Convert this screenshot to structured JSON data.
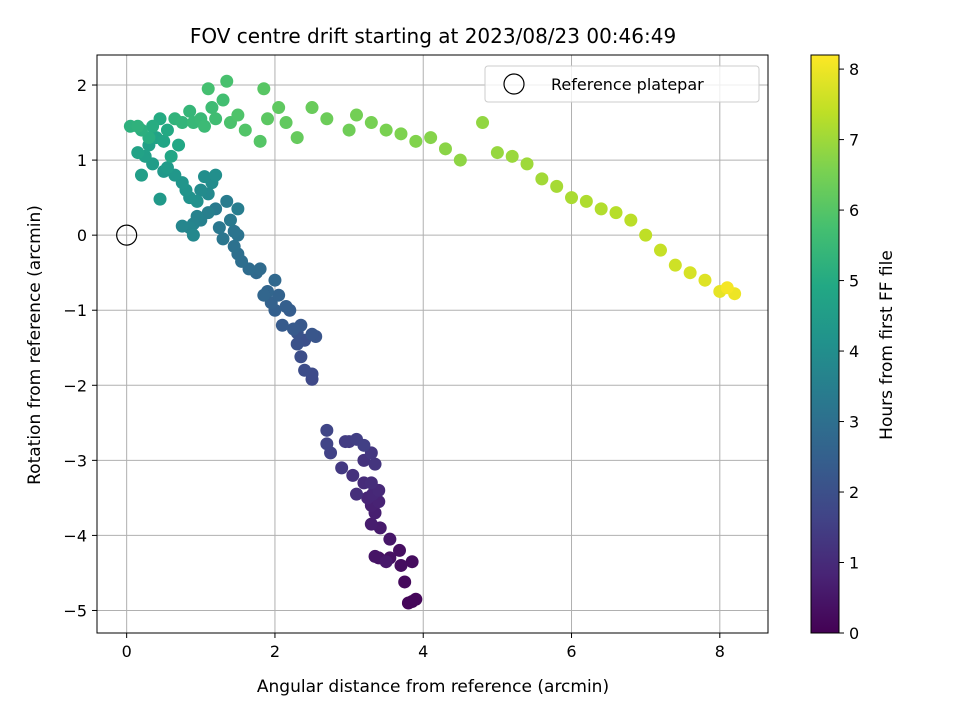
{
  "chart_data": {
    "type": "scatter",
    "title": "FOV centre drift starting at 2023/08/23 00:46:49",
    "xlabel": "Angular distance from reference (arcmin)",
    "ylabel": "Rotation from reference (arcmin)",
    "xlim": [
      -0.4,
      8.65
    ],
    "ylim": [
      -5.3,
      2.4
    ],
    "xticks": [
      0,
      2,
      4,
      6,
      8
    ],
    "xtick_labels": [
      "0",
      "2",
      "4",
      "6",
      "8"
    ],
    "yticks": [
      -5,
      -4,
      -3,
      -2,
      -1,
      0,
      1,
      2
    ],
    "ytick_labels": [
      "−5",
      "−4",
      "−3",
      "−2",
      "−1",
      "0",
      "1",
      "2"
    ],
    "grid": true,
    "colormap": "viridis",
    "colorbar": {
      "label": "Hours from first FF file",
      "range": [
        0,
        8.2
      ],
      "ticks": [
        0,
        1,
        2,
        3,
        4,
        5,
        6,
        7,
        8
      ],
      "tick_labels": [
        "0",
        "1",
        "2",
        "3",
        "4",
        "5",
        "6",
        "7",
        "8"
      ]
    },
    "legend": {
      "position": "top-right",
      "entries": [
        {
          "label": "Reference platepar",
          "marker": "open-circle"
        }
      ]
    },
    "reference_point": {
      "x": 0,
      "y": 0
    },
    "points": [
      [
        3.85,
        -4.88,
        0.1
      ],
      [
        3.8,
        -4.9,
        0.12
      ],
      [
        3.9,
        -4.85,
        0.15
      ],
      [
        3.75,
        -4.62,
        0.2
      ],
      [
        3.85,
        -4.35,
        0.25
      ],
      [
        3.7,
        -4.4,
        0.28
      ],
      [
        3.68,
        -4.2,
        0.32
      ],
      [
        3.55,
        -4.3,
        0.36
      ],
      [
        3.4,
        -4.3,
        0.4
      ],
      [
        3.35,
        -4.28,
        0.45
      ],
      [
        3.55,
        -4.05,
        0.5
      ],
      [
        3.5,
        -4.35,
        0.55
      ],
      [
        3.42,
        -3.9,
        0.6
      ],
      [
        3.3,
        -3.85,
        0.65
      ],
      [
        3.35,
        -3.7,
        0.7
      ],
      [
        3.3,
        -3.6,
        0.75
      ],
      [
        3.4,
        -3.55,
        0.8
      ],
      [
        3.25,
        -3.5,
        0.85
      ],
      [
        3.32,
        -3.45,
        0.9
      ],
      [
        3.4,
        -3.4,
        0.95
      ],
      [
        3.2,
        -3.3,
        1.0
      ],
      [
        3.3,
        -3.3,
        1.05
      ],
      [
        3.1,
        -3.45,
        1.1
      ],
      [
        3.05,
        -3.2,
        1.15
      ],
      [
        3.2,
        -3.0,
        1.2
      ],
      [
        3.35,
        -3.05,
        1.25
      ],
      [
        3.3,
        -2.9,
        1.3
      ],
      [
        2.9,
        -3.1,
        1.35
      ],
      [
        3.0,
        -2.75,
        1.4
      ],
      [
        2.95,
        -2.75,
        1.45
      ],
      [
        3.1,
        -2.72,
        1.5
      ],
      [
        3.2,
        -2.8,
        1.55
      ],
      [
        2.75,
        -2.9,
        1.6
      ],
      [
        2.7,
        -2.78,
        1.65
      ],
      [
        2.7,
        -2.6,
        1.7
      ],
      [
        2.5,
        -1.92,
        1.8
      ],
      [
        2.5,
        -1.85,
        1.85
      ],
      [
        2.4,
        -1.8,
        1.9
      ],
      [
        2.35,
        -1.62,
        1.95
      ],
      [
        2.4,
        -1.4,
        2.0
      ],
      [
        2.3,
        -1.45,
        2.05
      ],
      [
        2.3,
        -1.3,
        2.1
      ],
      [
        2.55,
        -1.35,
        2.15
      ],
      [
        2.5,
        -1.32,
        2.2
      ],
      [
        2.35,
        -1.2,
        2.25
      ],
      [
        2.25,
        -1.25,
        2.3
      ],
      [
        2.1,
        -1.2,
        2.35
      ],
      [
        2.2,
        -1.0,
        2.4
      ],
      [
        2.15,
        -0.95,
        2.45
      ],
      [
        2.0,
        -1.0,
        2.5
      ],
      [
        1.95,
        -0.9,
        2.55
      ],
      [
        2.05,
        -0.8,
        2.6
      ],
      [
        1.9,
        -0.75,
        2.65
      ],
      [
        1.85,
        -0.8,
        2.7
      ],
      [
        2.0,
        -0.6,
        2.75
      ],
      [
        1.75,
        -0.5,
        2.8
      ],
      [
        1.8,
        -0.45,
        2.85
      ],
      [
        1.65,
        -0.45,
        2.9
      ],
      [
        1.55,
        -0.35,
        2.95
      ],
      [
        1.5,
        -0.25,
        3.0
      ],
      [
        1.45,
        -0.15,
        3.05
      ],
      [
        1.5,
        0.0,
        3.1
      ],
      [
        1.45,
        0.05,
        3.15
      ],
      [
        1.3,
        -0.05,
        3.2
      ],
      [
        1.25,
        0.1,
        3.25
      ],
      [
        1.4,
        0.2,
        3.3
      ],
      [
        1.2,
        0.35,
        3.35
      ],
      [
        1.35,
        0.45,
        3.4
      ],
      [
        1.5,
        0.35,
        3.45
      ],
      [
        1.1,
        0.3,
        3.5
      ],
      [
        1.0,
        0.2,
        3.55
      ],
      [
        0.95,
        0.25,
        3.6
      ],
      [
        0.9,
        0.15,
        3.65
      ],
      [
        0.85,
        0.1,
        3.7
      ],
      [
        0.75,
        0.12,
        3.75
      ],
      [
        0.9,
        0.0,
        3.8
      ],
      [
        1.1,
        0.55,
        3.85
      ],
      [
        1.0,
        0.6,
        3.9
      ],
      [
        1.15,
        0.7,
        3.95
      ],
      [
        1.05,
        0.78,
        4.0
      ],
      [
        1.2,
        0.8,
        4.05
      ],
      [
        0.95,
        0.45,
        4.1
      ],
      [
        0.85,
        0.5,
        4.15
      ],
      [
        0.8,
        0.6,
        4.2
      ],
      [
        0.75,
        0.7,
        4.25
      ],
      [
        0.65,
        0.8,
        4.3
      ],
      [
        0.5,
        0.85,
        4.35
      ],
      [
        0.45,
        0.48,
        4.4
      ],
      [
        0.55,
        0.9,
        4.45
      ],
      [
        0.35,
        0.95,
        4.5
      ],
      [
        0.2,
        0.8,
        4.55
      ],
      [
        0.25,
        1.05,
        4.6
      ],
      [
        0.3,
        1.2,
        4.65
      ],
      [
        0.15,
        1.1,
        4.7
      ],
      [
        0.4,
        1.3,
        4.75
      ],
      [
        0.5,
        1.25,
        4.8
      ],
      [
        0.6,
        1.05,
        4.85
      ],
      [
        0.7,
        1.2,
        4.9
      ],
      [
        0.55,
        1.4,
        4.95
      ],
      [
        0.45,
        1.55,
        5.0
      ],
      [
        0.35,
        1.45,
        5.05
      ],
      [
        0.3,
        1.3,
        5.1
      ],
      [
        0.2,
        1.4,
        5.15
      ],
      [
        0.05,
        1.45,
        5.2
      ],
      [
        0.15,
        1.45,
        5.25
      ],
      [
        0.65,
        1.55,
        5.3
      ],
      [
        0.75,
        1.5,
        5.35
      ],
      [
        0.85,
        1.65,
        5.4
      ],
      [
        0.9,
        1.5,
        5.45
      ],
      [
        1.0,
        1.55,
        5.5
      ],
      [
        1.05,
        1.45,
        5.55
      ],
      [
        1.15,
        1.7,
        5.6
      ],
      [
        1.2,
        1.55,
        5.65
      ],
      [
        1.3,
        1.8,
        5.7
      ],
      [
        1.1,
        1.95,
        5.75
      ],
      [
        1.35,
        2.05,
        5.8
      ],
      [
        1.4,
        1.5,
        5.85
      ],
      [
        1.5,
        1.6,
        5.9
      ],
      [
        1.6,
        1.4,
        5.95
      ],
      [
        1.8,
        1.25,
        6.0
      ],
      [
        1.85,
        1.95,
        6.05
      ],
      [
        1.9,
        1.55,
        6.1
      ],
      [
        2.05,
        1.7,
        6.15
      ],
      [
        2.15,
        1.5,
        6.2
      ],
      [
        2.3,
        1.3,
        6.25
      ],
      [
        2.5,
        1.7,
        6.3
      ],
      [
        2.7,
        1.55,
        6.35
      ],
      [
        3.0,
        1.4,
        6.4
      ],
      [
        3.1,
        1.6,
        6.45
      ],
      [
        3.3,
        1.5,
        6.5
      ],
      [
        3.5,
        1.4,
        6.55
      ],
      [
        3.7,
        1.35,
        6.6
      ],
      [
        3.9,
        1.25,
        6.65
      ],
      [
        4.1,
        1.3,
        6.7
      ],
      [
        4.3,
        1.15,
        6.75
      ],
      [
        4.5,
        1.0,
        6.8
      ],
      [
        4.8,
        1.5,
        6.85
      ],
      [
        5.0,
        1.1,
        6.9
      ],
      [
        5.2,
        1.05,
        6.95
      ],
      [
        5.4,
        0.95,
        7.0
      ],
      [
        5.6,
        0.75,
        7.05
      ],
      [
        5.8,
        0.65,
        7.1
      ],
      [
        6.0,
        0.5,
        7.15
      ],
      [
        6.2,
        0.45,
        7.2
      ],
      [
        6.4,
        0.35,
        7.25
      ],
      [
        6.6,
        0.3,
        7.3
      ],
      [
        6.8,
        0.2,
        7.35
      ],
      [
        7.0,
        0.0,
        7.4
      ],
      [
        7.2,
        -0.2,
        7.5
      ],
      [
        7.4,
        -0.4,
        7.6
      ],
      [
        7.6,
        -0.5,
        7.7
      ],
      [
        7.8,
        -0.6,
        7.8
      ],
      [
        8.0,
        -0.75,
        7.9
      ],
      [
        8.2,
        -0.78,
        8.0
      ],
      [
        8.1,
        -0.7,
        8.1
      ]
    ]
  }
}
